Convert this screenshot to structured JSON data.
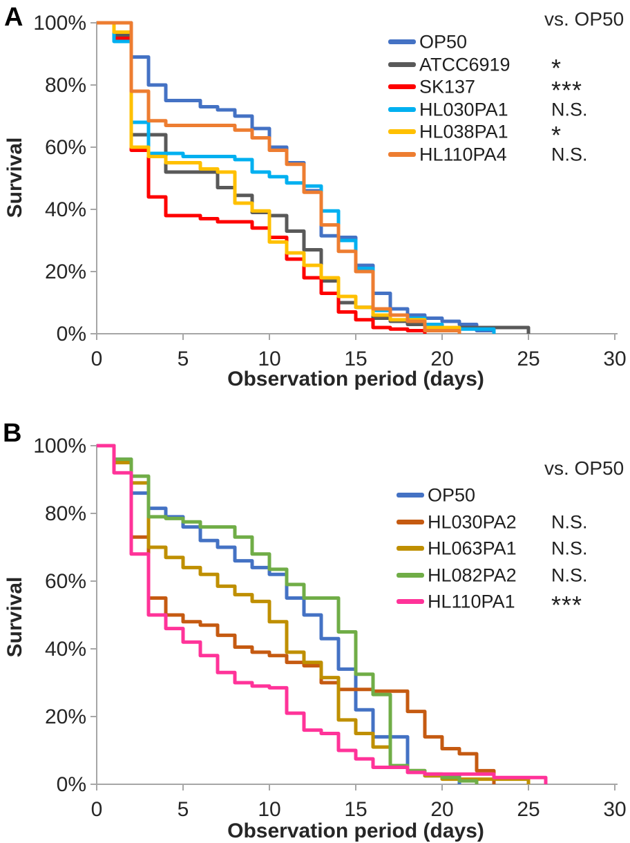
{
  "chart_data": [
    {
      "type": "line",
      "subtype": "kaplan-meier-step-survival",
      "panel": "A",
      "xlabel": "Observation period (days)",
      "ylabel": "Survival",
      "legend_header": "vs. OP50",
      "legend_position": "top-right",
      "grid": false,
      "xlim": [
        0,
        30
      ],
      "xticks": [
        0,
        5,
        10,
        15,
        20,
        25,
        30
      ],
      "yticks": [
        "0%",
        "20%",
        "40%",
        "60%",
        "80%",
        "100%"
      ],
      "ylim_percent": [
        0,
        100
      ],
      "x_encoding": "array index = day of observation; value holds until next day (step function)",
      "axis_color": "#A6A6A6",
      "text_color": "#262626",
      "series": [
        {
          "name": "OP50",
          "color": "#4472C4",
          "significance": "",
          "survival_percent": [
            100,
            100,
            89,
            80,
            75,
            75,
            73,
            72,
            70,
            66,
            60,
            55,
            46,
            31.5,
            31,
            22,
            13,
            8,
            6,
            5,
            4,
            3,
            1,
            0
          ]
        },
        {
          "name": "ATCC6919",
          "color": "#595959",
          "significance": "*",
          "survival_percent": [
            100,
            96,
            64,
            64,
            52,
            52,
            52,
            47,
            44.5,
            39,
            38,
            33,
            27,
            17,
            10,
            8.5,
            5,
            4,
            3,
            2.5,
            2,
            2,
            2,
            2,
            2,
            0
          ]
        },
        {
          "name": "SK137",
          "color": "#FE0000",
          "significance": "***",
          "survival_percent": [
            100,
            95,
            59,
            44,
            38,
            38,
            37,
            36,
            36,
            34,
            31,
            24,
            18,
            13,
            7,
            4.5,
            2,
            1.5,
            1,
            0
          ]
        },
        {
          "name": "HL030PA1",
          "color": "#00B0F0",
          "significance": "N.S.",
          "survival_percent": [
            100,
            94,
            68,
            58,
            58,
            57,
            57,
            57,
            56,
            52,
            50.5,
            48.5,
            47.5,
            39.5,
            30,
            21,
            7.5,
            6,
            5,
            3,
            2,
            1.5,
            1.5,
            0
          ]
        },
        {
          "name": "HL038PA1",
          "color": "#FFC000",
          "significance": "*",
          "survival_percent": [
            100,
            97,
            60,
            57,
            55,
            55,
            53,
            52,
            42,
            39.5,
            29.5,
            26,
            22,
            18,
            12,
            8.5,
            6,
            4.5,
            4.5,
            2,
            2,
            0
          ]
        },
        {
          "name": "HL110PA4",
          "color": "#ED7D31",
          "significance": "N.S.",
          "survival_percent": [
            100,
            100,
            78,
            68.5,
            67,
            67,
            67,
            67,
            65.5,
            63,
            59,
            54.5,
            45.5,
            35,
            26.5,
            20,
            8,
            6,
            4,
            1,
            1,
            0
          ]
        }
      ]
    },
    {
      "type": "line",
      "subtype": "kaplan-meier-step-survival",
      "panel": "B",
      "xlabel": "Observation period (days)",
      "ylabel": "Survival",
      "legend_header": "vs. OP50",
      "legend_position": "top-right",
      "grid": false,
      "xlim": [
        0,
        30
      ],
      "xticks": [
        0,
        5,
        10,
        15,
        20,
        25,
        30
      ],
      "yticks": [
        "0%",
        "20%",
        "40%",
        "60%",
        "80%",
        "100%"
      ],
      "ylim_percent": [
        0,
        100
      ],
      "x_encoding": "array index = day of observation; value holds until next day (step function)",
      "axis_color": "#A6A6A6",
      "text_color": "#262626",
      "series": [
        {
          "name": "OP50",
          "color": "#4472C4",
          "significance": "",
          "survival_percent": [
            100,
            96,
            86,
            81.5,
            79,
            76,
            72,
            70,
            66,
            64,
            62,
            55,
            50,
            43,
            34,
            22,
            14,
            14,
            4,
            2.5,
            2.5,
            0
          ]
        },
        {
          "name": "HL030PA2",
          "color": "#C55A11",
          "significance": "N.S.",
          "survival_percent": [
            100,
            95,
            73,
            55,
            50,
            48,
            47,
            44,
            40.5,
            39,
            38,
            36,
            35,
            30,
            28,
            28,
            27.5,
            27.5,
            21.5,
            14,
            10.5,
            9,
            4,
            0
          ]
        },
        {
          "name": "HL063PA1",
          "color": "#BF8F00",
          "significance": "N.S.",
          "survival_percent": [
            100,
            95,
            89,
            70,
            67,
            64,
            62,
            58.5,
            56,
            54,
            48,
            39,
            36,
            31.5,
            19,
            15,
            11,
            5.5,
            4,
            2.5,
            1.5,
            1.5,
            1.5,
            1.5,
            1.5,
            0
          ]
        },
        {
          "name": "HL082PA2",
          "color": "#70AD47",
          "significance": "N.S.",
          "survival_percent": [
            100,
            96,
            91,
            79,
            78.5,
            77.5,
            76,
            76,
            73,
            68,
            63.5,
            59,
            55,
            55,
            45,
            32.5,
            26.5,
            5.5,
            4,
            3,
            2,
            1,
            0
          ]
        },
        {
          "name": "HL110PA1",
          "color": "#FF3399",
          "significance": "***",
          "survival_percent": [
            100,
            92,
            68,
            50,
            46,
            42,
            38,
            33,
            30,
            29,
            28.5,
            21,
            16,
            15,
            10,
            7.5,
            5,
            5,
            3.5,
            3,
            3,
            3,
            3,
            2,
            2,
            2,
            0
          ]
        }
      ]
    }
  ]
}
